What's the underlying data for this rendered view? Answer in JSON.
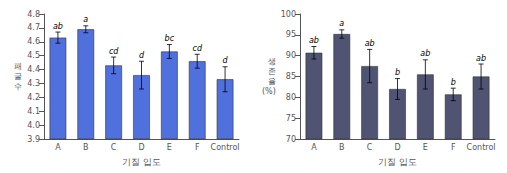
{
  "chart_data": [
    {
      "type": "bar",
      "categories": [
        "A",
        "B",
        "C",
        "D",
        "E",
        "F",
        "Control"
      ],
      "values": [
        4.63,
        4.69,
        4.43,
        4.36,
        4.53,
        4.46,
        4.33
      ],
      "errors": [
        0.04,
        0.025,
        0.06,
        0.1,
        0.05,
        0.05,
        0.09
      ],
      "annotations": [
        "ab",
        "a",
        "cd",
        "d",
        "bc",
        "cd",
        "d"
      ],
      "ylabel": "패\n굴\n수",
      "xlabel": "기질 입도",
      "ylim": [
        3.9,
        4.8
      ],
      "yticks": [
        3.9,
        {
          "value": 4.0,
          "label": "4.0"
        },
        4.1,
        4.2,
        4.3,
        4.4,
        4.5,
        4.6,
        4.7,
        4.8
      ],
      "grid": false
    },
    {
      "type": "bar",
      "categories": [
        "A",
        "B",
        "C",
        "D",
        "E",
        "F",
        "Control"
      ],
      "values": [
        90.7,
        95.2,
        87.5,
        82.0,
        85.5,
        80.7,
        85.0
      ],
      "errors": [
        1.5,
        1.0,
        4.0,
        2.5,
        3.5,
        1.5,
        3.0
      ],
      "annotations": [
        "ab",
        "a",
        "ab",
        "b",
        "ab",
        "b",
        "ab"
      ],
      "ylabel": "생\n존\n율\n(%)",
      "xlabel": "기질 입도",
      "ylim": [
        70,
        100
      ],
      "yticks": [
        70,
        75,
        80,
        85,
        90,
        95,
        100
      ],
      "grid": false
    }
  ]
}
